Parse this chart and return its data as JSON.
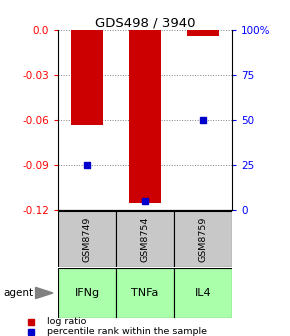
{
  "title": "GDS498 / 3940",
  "samples": [
    "GSM8749",
    "GSM8754",
    "GSM8759"
  ],
  "agents": [
    "IFNg",
    "TNFa",
    "IL4"
  ],
  "log_ratios": [
    -0.063,
    -0.115,
    -0.004
  ],
  "percentile_ranks": [
    25,
    5,
    50
  ],
  "ylim_log": [
    0.0,
    -0.12
  ],
  "yticks_log": [
    0.0,
    -0.03,
    -0.06,
    -0.09,
    -0.12
  ],
  "yticks_pct": [
    100,
    75,
    50,
    25,
    0
  ],
  "bar_color_red": "#cc0000",
  "bar_color_blue": "#0000cc",
  "sample_bg": "#c8c8c8",
  "agent_bg_color": "#aaffaa",
  "legend_red": "log ratio",
  "legend_blue": "percentile rank within the sample"
}
